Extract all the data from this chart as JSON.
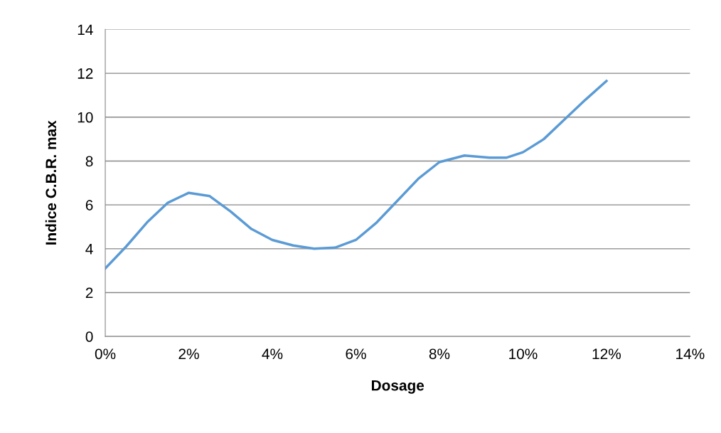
{
  "chart_data": {
    "type": "line",
    "xlabel": "Dosage",
    "ylabel": "Indice C.B.R. max",
    "x": [
      0,
      0.5,
      1,
      1.5,
      2,
      2.5,
      3,
      3.5,
      4,
      4.5,
      5,
      5.5,
      6,
      6.5,
      7,
      7.5,
      8,
      8.6,
      9.2,
      9.6,
      10,
      10.5,
      11,
      11.5,
      12
    ],
    "series": [
      {
        "color": "#5b9bd5",
        "values": [
          3.1,
          4.1,
          5.2,
          6.1,
          6.55,
          6.4,
          5.7,
          4.9,
          4.4,
          4.15,
          4.0,
          4.05,
          4.4,
          5.2,
          6.2,
          7.2,
          7.95,
          8.25,
          8.15,
          8.15,
          8.4,
          9.0,
          9.9,
          10.8,
          11.65
        ]
      }
    ],
    "xlim": [
      0,
      14
    ],
    "xticks": [
      {
        "value": 0,
        "label": "0%"
      },
      {
        "value": 2,
        "label": "2%"
      },
      {
        "value": 4,
        "label": "4%"
      },
      {
        "value": 6,
        "label": "6%"
      },
      {
        "value": 8,
        "label": "8%"
      },
      {
        "value": 10,
        "label": "10%"
      },
      {
        "value": 12,
        "label": "12%"
      },
      {
        "value": 14,
        "label": "14%"
      }
    ],
    "ylim": [
      0,
      14
    ],
    "yticks": [
      0,
      2,
      4,
      6,
      8,
      10,
      12,
      14
    ],
    "grid": "y",
    "marker": "none",
    "line_style": "solid",
    "legend": false
  }
}
